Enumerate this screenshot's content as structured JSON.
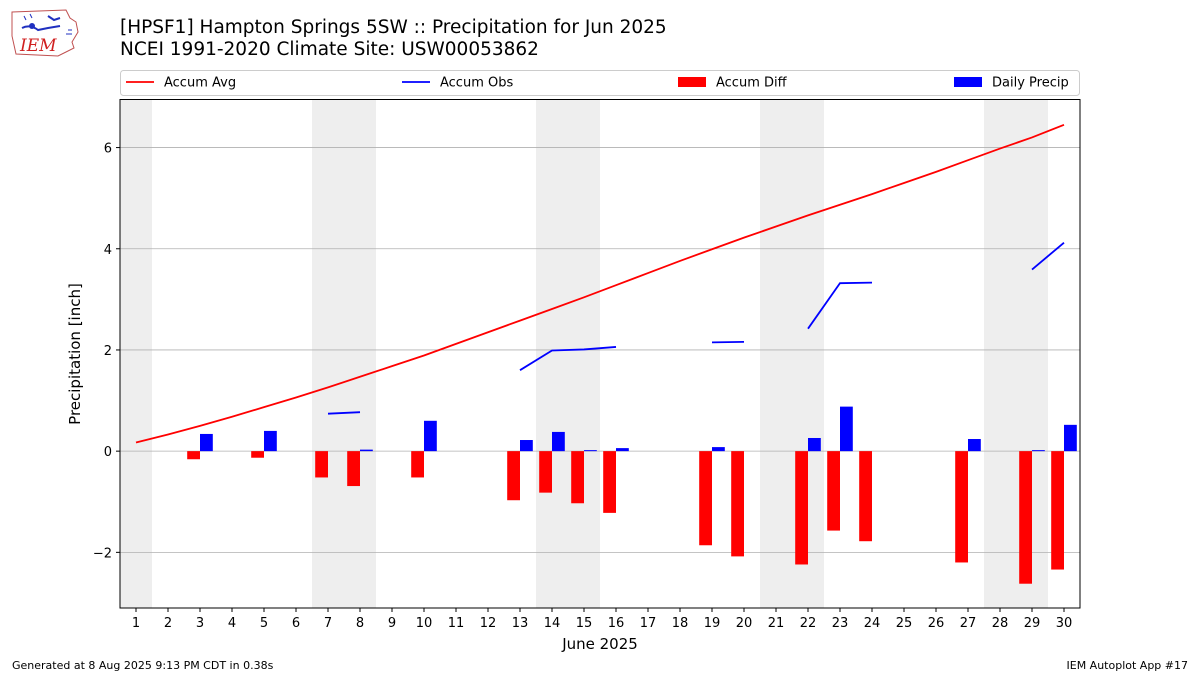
{
  "logo": {
    "text": "IEM"
  },
  "header": {
    "title_line1": "[HPSF1] Hampton Springs 5SW :: Precipitation for Jun 2025",
    "title_line2": "NCEI 1991-2020 Climate Site: USW00053862"
  },
  "footer": {
    "left": "Generated at 8 Aug 2025 9:13 PM CDT in 0.38s",
    "right": "IEM Autoplot App #17"
  },
  "chart_data": {
    "type": "bar",
    "xlabel": "June 2025",
    "ylabel": "Precipitation [inch]",
    "xlim": [
      0.5,
      30.5
    ],
    "ylim": [
      -3.1,
      6.95
    ],
    "yticks": [
      -2,
      0,
      2,
      4,
      6
    ],
    "ytick_labels": [
      "−2",
      "0",
      "2",
      "4",
      "6"
    ],
    "x": [
      1,
      2,
      3,
      4,
      5,
      6,
      7,
      8,
      9,
      10,
      11,
      12,
      13,
      14,
      15,
      16,
      17,
      18,
      19,
      20,
      21,
      22,
      23,
      24,
      25,
      26,
      27,
      28,
      29,
      30
    ],
    "grid": "horizontal",
    "weekend_shading": [
      [
        0.5,
        1.5
      ],
      [
        6.5,
        8.5
      ],
      [
        13.5,
        15.5
      ],
      [
        20.5,
        22.5
      ],
      [
        27.5,
        29.5
      ]
    ],
    "legend": {
      "placement": "top",
      "entries": [
        {
          "label": "Accum Avg",
          "kind": "line",
          "color": "#ff0000"
        },
        {
          "label": "Accum Obs",
          "kind": "line",
          "color": "#0000ff"
        },
        {
          "label": "Accum Diff",
          "kind": "bar",
          "color": "#ff0000"
        },
        {
          "label": "Daily Precip",
          "kind": "bar",
          "color": "#0000ff"
        }
      ]
    },
    "series": [
      {
        "name": "Accum Avg",
        "kind": "line",
        "color": "#ff0000",
        "values": [
          0.17,
          0.33,
          0.5,
          0.68,
          0.87,
          1.06,
          1.26,
          1.47,
          1.68,
          1.89,
          2.12,
          2.35,
          2.58,
          2.81,
          3.04,
          3.28,
          3.52,
          3.76,
          3.99,
          4.22,
          4.44,
          4.66,
          4.87,
          5.08,
          5.3,
          5.52,
          5.75,
          5.98,
          6.2,
          6.45
        ]
      },
      {
        "name": "Accum Obs",
        "kind": "line",
        "color": "#0000ff",
        "values": [
          null,
          null,
          null,
          null,
          null,
          null,
          0.74,
          0.77,
          null,
          null,
          null,
          null,
          1.6,
          1.99,
          2.01,
          2.06,
          null,
          null,
          2.15,
          2.16,
          null,
          2.42,
          3.32,
          3.33,
          null,
          null,
          null,
          null,
          3.59,
          4.12
        ]
      },
      {
        "name": "Accum Diff",
        "kind": "bar",
        "color": "#ff0000",
        "values": [
          null,
          null,
          -0.16,
          null,
          -0.13,
          null,
          -0.52,
          -0.69,
          null,
          -0.52,
          null,
          null,
          -0.97,
          -0.82,
          -1.03,
          -1.22,
          null,
          null,
          -1.86,
          -2.08,
          null,
          -2.24,
          -1.57,
          -1.78,
          null,
          null,
          -2.2,
          null,
          -2.62,
          -2.34
        ]
      },
      {
        "name": "Daily Precip",
        "kind": "bar",
        "color": "#0000ff",
        "values": [
          null,
          null,
          0.34,
          null,
          0.4,
          null,
          null,
          0.03,
          null,
          0.6,
          null,
          null,
          0.22,
          0.38,
          0.02,
          0.06,
          null,
          null,
          0.08,
          null,
          null,
          0.26,
          0.88,
          null,
          null,
          null,
          0.24,
          null,
          0.02,
          0.52
        ]
      }
    ]
  }
}
